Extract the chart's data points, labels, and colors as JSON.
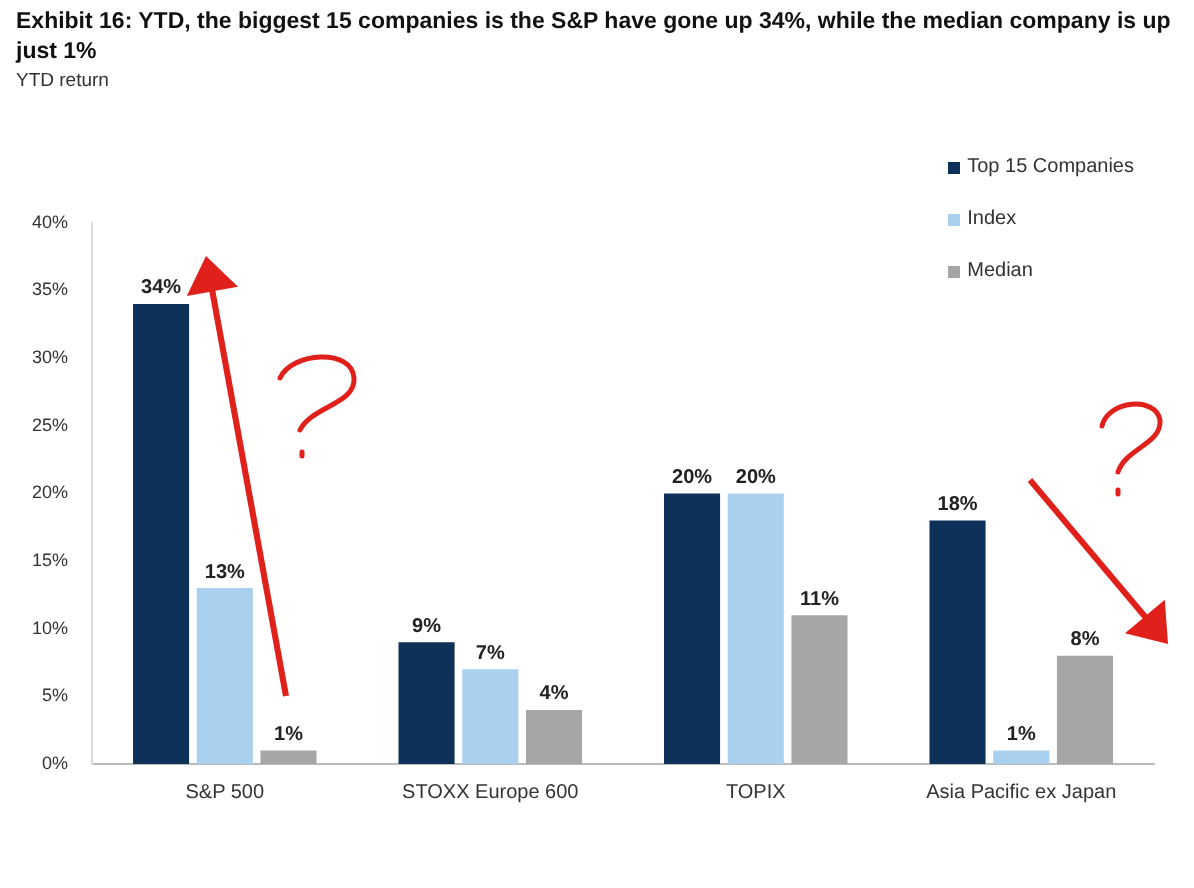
{
  "chart_data": {
    "type": "bar",
    "title": "Exhibit 16: YTD, the biggest 15 companies is the S&P have gone up 34%, while the median company is up just 1%",
    "subtitle": "YTD return",
    "categories": [
      "S&P 500",
      "STOXX Europe 600",
      "TOPIX",
      "Asia Pacific ex Japan"
    ],
    "series": [
      {
        "name": "Top 15 Companies",
        "color": "#0d3158",
        "values": [
          34,
          9,
          20,
          18
        ],
        "value_labels": [
          "34%",
          "9%",
          "20%",
          "18%"
        ]
      },
      {
        "name": "Index",
        "color": "#a9d1ef",
        "values": [
          13,
          7,
          20,
          1
        ],
        "value_labels": [
          "13%",
          "7%",
          "20%",
          "1%"
        ]
      },
      {
        "name": "Median",
        "color": "#a6a6a6",
        "values": [
          1,
          4,
          11,
          8
        ],
        "value_labels": [
          "1%",
          "4%",
          "11%",
          "8%"
        ]
      }
    ],
    "ylim": [
      0,
      40
    ],
    "yticks": [
      {
        "value": 0,
        "label": "0%"
      },
      {
        "value": 5,
        "label": "5%"
      },
      {
        "value": 10,
        "label": "10%"
      },
      {
        "value": 15,
        "label": "15%"
      },
      {
        "value": 20,
        "label": "20%"
      },
      {
        "value": 25,
        "label": "25%"
      },
      {
        "value": 30,
        "label": "30%"
      },
      {
        "value": 35,
        "label": "35%"
      },
      {
        "value": 40,
        "label": "40%"
      }
    ],
    "grid": false,
    "legend": "top right"
  }
}
